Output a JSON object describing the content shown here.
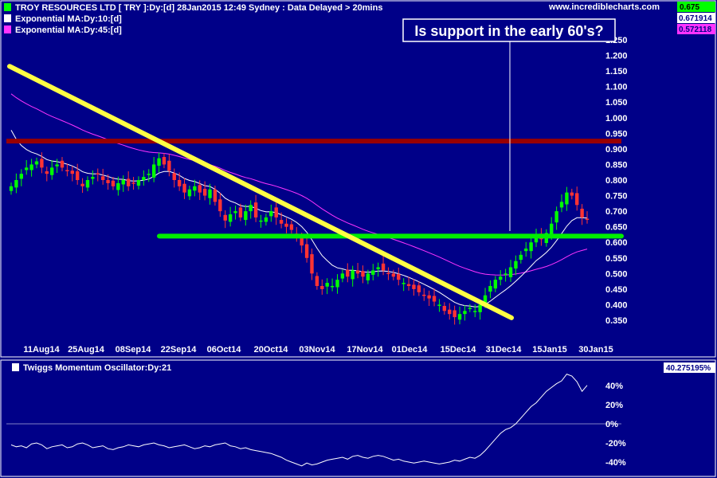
{
  "header": {
    "title": "TROY RESOURCES LTD [ TRY ]:Dy:[d]  28Jan2015 12:49 Sydney : Data Delayed > 20mins",
    "site": "www.incrediblecharts.com",
    "legend": [
      {
        "label": "Exponential MA:Dy:10:[d]",
        "color": "#ffffff"
      },
      {
        "label": "Exponential MA:Dy:45:[d]",
        "color": "#ff33ff"
      }
    ],
    "readouts": [
      {
        "value": "0.675",
        "bg": "#00ff00",
        "fg": "#000000"
      },
      {
        "value": "0.671914",
        "bg": "#ffffff",
        "fg": "#000088"
      },
      {
        "value": "0.572118",
        "bg": "#ff33ff",
        "fg": "#000088"
      }
    ]
  },
  "annotation": "Is support in the early 60's?",
  "oscillator": {
    "title": "Twiggs Momentum Oscillator:Dy:21",
    "readout": "40.275195%"
  },
  "colors": {
    "background": "#000088",
    "up_candle": "#00ff00",
    "down_candle": "#ff3333",
    "trendline": "#ffff44",
    "resistance": "#990000",
    "support": "#00ee00"
  },
  "chart_data": [
    {
      "type": "candlestick",
      "y_ticks": [
        "1.250",
        "1.200",
        "1.150",
        "1.100",
        "1.050",
        "1.000",
        "0.950",
        "0.900",
        "0.850",
        "0.800",
        "0.750",
        "0.700",
        "0.650",
        "0.600",
        "0.550",
        "0.500",
        "0.450",
        "0.400",
        "0.350"
      ],
      "x_ticks": [
        "11Aug14",
        "25Aug14",
        "08Sep14",
        "22Sep14",
        "06Oct14",
        "20Oct14",
        "03Nov14",
        "17Nov14",
        "01Dec14",
        "15Dec14",
        "31Dec14",
        "15Jan15",
        "30Jan15"
      ],
      "ylim": [
        0.33,
        1.26
      ],
      "closes": [
        0.78,
        0.8,
        0.82,
        0.84,
        0.85,
        0.86,
        0.84,
        0.82,
        0.84,
        0.85,
        0.84,
        0.83,
        0.82,
        0.8,
        0.78,
        0.8,
        0.81,
        0.82,
        0.8,
        0.79,
        0.78,
        0.79,
        0.8,
        0.78,
        0.79,
        0.8,
        0.81,
        0.82,
        0.85,
        0.87,
        0.85,
        0.83,
        0.8,
        0.78,
        0.76,
        0.77,
        0.78,
        0.76,
        0.75,
        0.77,
        0.73,
        0.7,
        0.67,
        0.69,
        0.7,
        0.68,
        0.7,
        0.72,
        0.68,
        0.67,
        0.68,
        0.7,
        0.68,
        0.66,
        0.65,
        0.64,
        0.62,
        0.59,
        0.55,
        0.5,
        0.46,
        0.45,
        0.47,
        0.46,
        0.48,
        0.5,
        0.49,
        0.51,
        0.5,
        0.49,
        0.5,
        0.51,
        0.52,
        0.51,
        0.5,
        0.49,
        0.48,
        0.47,
        0.46,
        0.45,
        0.44,
        0.43,
        0.42,
        0.41,
        0.4,
        0.38,
        0.37,
        0.36,
        0.37,
        0.38,
        0.39,
        0.38,
        0.4,
        0.43,
        0.46,
        0.48,
        0.49,
        0.5,
        0.52,
        0.54,
        0.56,
        0.58,
        0.6,
        0.62,
        0.61,
        0.63,
        0.66,
        0.7,
        0.73,
        0.76,
        0.75,
        0.72,
        0.68,
        0.675
      ],
      "support": 0.62,
      "resistance": 0.925,
      "trendline": {
        "from": [
          "start",
          1.165
        ],
        "to": [
          "06Jan15",
          0.358
        ]
      },
      "series": [
        {
          "name": "Exponential MA:Dy:10:[d]",
          "color": "#ffffff",
          "last": 0.671914
        },
        {
          "name": "Exponential MA:Dy:45:[d]",
          "color": "#ff33ff",
          "last": 0.572118
        }
      ]
    },
    {
      "type": "line",
      "name": "Twiggs Momentum Oscillator:Dy:21",
      "y_ticks": [
        "40%",
        "20%",
        "0%",
        "-20%",
        "-40%"
      ],
      "ylim": [
        -46,
        50
      ],
      "values": [
        -22,
        -24,
        -23,
        -25,
        -21,
        -20,
        -22,
        -26,
        -24,
        -23,
        -22,
        -25,
        -24,
        -21,
        -20,
        -22,
        -25,
        -24,
        -23,
        -26,
        -27,
        -25,
        -24,
        -22,
        -23,
        -24,
        -22,
        -21,
        -20,
        -22,
        -23,
        -25,
        -24,
        -23,
        -22,
        -24,
        -26,
        -25,
        -23,
        -24,
        -22,
        -21,
        -20,
        -23,
        -24,
        -26,
        -25,
        -27,
        -28,
        -29,
        -30,
        -31,
        -33,
        -35,
        -38,
        -40,
        -42,
        -44,
        -41,
        -43,
        -42,
        -40,
        -38,
        -37,
        -36,
        -35,
        -37,
        -34,
        -33,
        -35,
        -36,
        -34,
        -33,
        -34,
        -36,
        -38,
        -37,
        -39,
        -40,
        -41,
        -40,
        -39,
        -40,
        -41,
        -42,
        -41,
        -40,
        -38,
        -39,
        -37,
        -35,
        -36,
        -33,
        -28,
        -22,
        -16,
        -10,
        -6,
        -4,
        0,
        6,
        12,
        18,
        22,
        28,
        34,
        38,
        42,
        45,
        52,
        50,
        44,
        34,
        40.275195
      ]
    }
  ]
}
